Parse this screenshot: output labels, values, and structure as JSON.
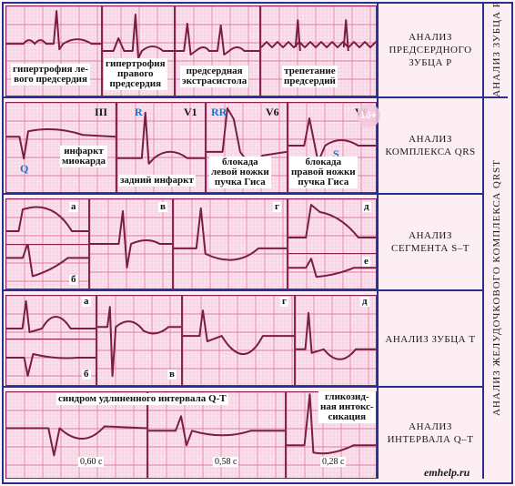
{
  "rows": [
    {
      "label": "АНАЛИЗ\nПРЕДСЕРДНОГО\nЗУБЦА Р",
      "captions": [
        "гипертрофия ле-\nвого предсердия",
        "гипертрофия\nправого\nпредсердия",
        "предсердная\nэкстрасистола",
        "трепетание\nпредсердий"
      ]
    },
    {
      "label": "АНАЛИЗ\nКОМПЛЕКСА QRS",
      "captions": [
        "инфаркт\nмиокарда",
        "задний инфаркт",
        "блокада\nлевой ножки\nпучка Гиса",
        "блокада\nправой ножки\nпучка Гиса"
      ],
      "leads": [
        "III",
        "V1",
        "V6",
        "V6"
      ],
      "wave_marks": [
        "Q",
        "R",
        "RR",
        "S"
      ]
    },
    {
      "label": "АНАЛИЗ\nСЕГМЕНТА S–T",
      "letters": [
        "а",
        "б",
        "в",
        "г",
        "д",
        "е"
      ]
    },
    {
      "label": "АНАЛИЗ ЗУБЦА Т",
      "letters": [
        "а",
        "б",
        "в",
        "г",
        "д"
      ]
    },
    {
      "label": "АНАЛИЗ\nИНТЕРВАЛА Q–T",
      "captions": [
        "синдром удлиненного интервала Q-T",
        "гликозид-\nная интокс-\nсикация"
      ],
      "durations": [
        "0,60 с",
        "0,58 с",
        "0,28 с"
      ]
    }
  ],
  "side_titles": {
    "p_wave": "АНАЛИЗ ЗУБЦА Р",
    "qrst": "АНАЛИЗ ЖЕЛУДОЧКОВОГО КОМПЛЕКСА QRST"
  },
  "badge": "16+",
  "credit": "emhelp.ru",
  "colors": {
    "grid_major": "#e07aa5",
    "grid_minor": "#f3c3d8",
    "paper": "#fbe3ee",
    "trace": "#7a1c44",
    "frame": "#2a2f8f"
  }
}
